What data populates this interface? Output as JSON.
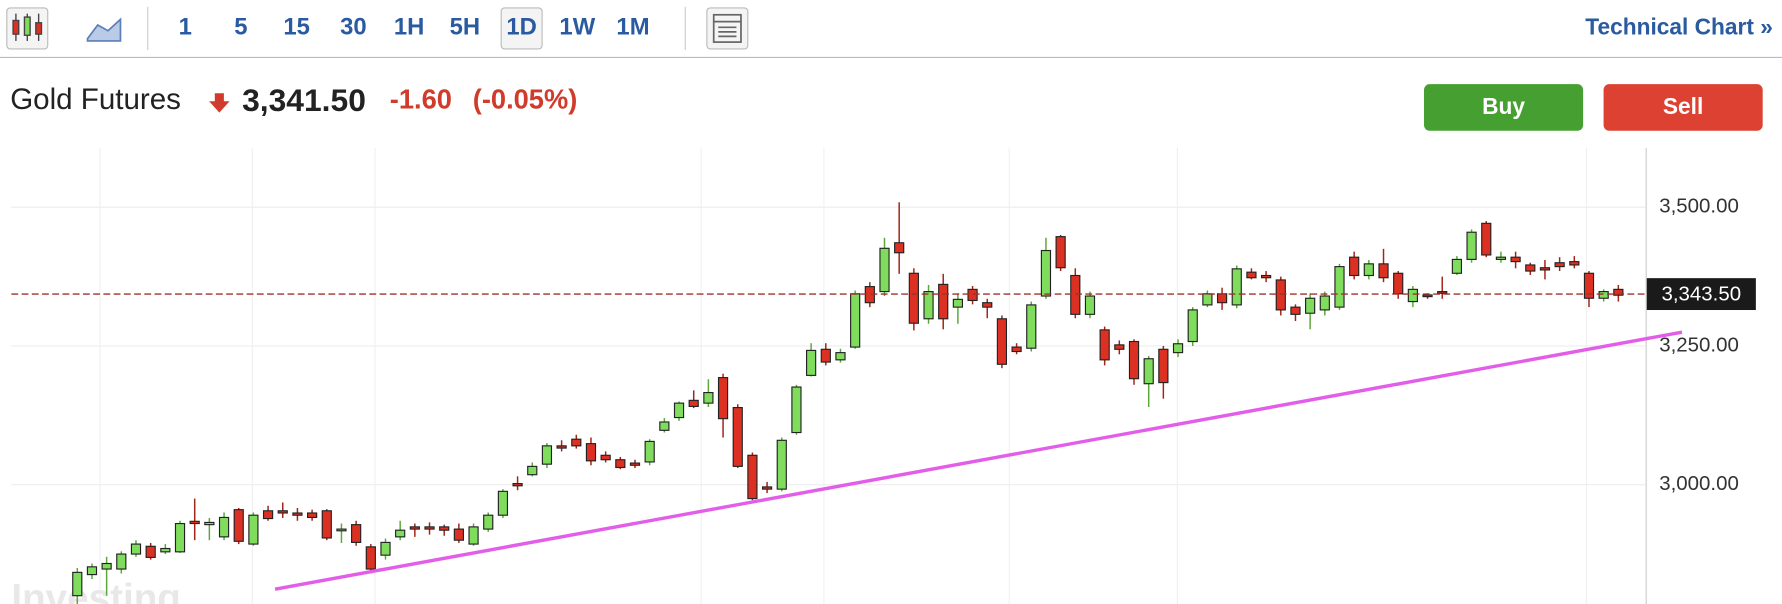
{
  "toolbar": {
    "intervals": [
      "1",
      "5",
      "15",
      "30",
      "1H",
      "5H",
      "1D",
      "1W",
      "1M"
    ],
    "link": "Technical Chart »"
  },
  "header": {
    "instrument": "Gold Futures",
    "last_price": "3,341.50",
    "change": "-1.60",
    "change_pct": "(-0.05%)"
  },
  "buttons": {
    "buy": "Buy",
    "sell": "Sell"
  },
  "watermark": "Investing",
  "chart_data": {
    "type": "candlestick",
    "up_color": "#7fdc5c",
    "down_color": "#dc3122",
    "ylim": [
      2785,
      3607
    ],
    "yticks": [
      {
        "value": 3000,
        "label": "3,000.00"
      },
      {
        "value": 3250,
        "label": "3,250.00"
      },
      {
        "value": 3500,
        "label": "3,500.00"
      }
    ],
    "price_line": {
      "value": 3343.5,
      "label": "3,343.50"
    },
    "open": [
      2800,
      2838,
      2848,
      2848,
      2875,
      2889,
      2879,
      2879,
      2934,
      2928,
      2906,
      2955,
      2893,
      2953,
      2953,
      2949,
      2949,
      2953,
      2918,
      2928,
      2888,
      2873,
      2906,
      2924,
      2924,
      2924,
      2920,
      2893,
      2920,
      2945,
      3002,
      3018,
      3037,
      3070,
      3082,
      3074,
      3053,
      3045,
      3039,
      3041,
      3098,
      3121,
      3152,
      3147,
      3193,
      3139,
      3053,
      2996,
      2992,
      3094,
      3197,
      3244,
      3225,
      3248,
      3357,
      3348,
      3436,
      3381,
      3299,
      3361,
      3320,
      3352,
      3328,
      3299,
      3248,
      3246,
      3340,
      3447,
      3377,
      3307,
      3279,
      3252,
      3258,
      3182,
      3244,
      3238,
      3258,
      3324,
      3344,
      3324,
      3383,
      3377,
      3369,
      3320,
      3309,
      3315,
      3320,
      3410,
      3377,
      3398,
      3381,
      3330,
      3342,
      3348,
      3381,
      3406,
      3471,
      3406,
      3410,
      3396,
      3391,
      3400,
      3402,
      3381,
      3336,
      3352
    ],
    "high": [
      2850,
      2858,
      2870,
      2880,
      2900,
      2895,
      2893,
      2935,
      2975,
      2940,
      2950,
      2958,
      2950,
      2962,
      2968,
      2958,
      2955,
      2956,
      2930,
      2935,
      2893,
      2903,
      2935,
      2930,
      2932,
      2928,
      2930,
      2930,
      2950,
      2992,
      3015,
      3040,
      3075,
      3080,
      3090,
      3085,
      3060,
      3050,
      3045,
      3082,
      3120,
      3150,
      3170,
      3190,
      3200,
      3145,
      3058,
      3005,
      3085,
      3180,
      3255,
      3255,
      3245,
      3350,
      3365,
      3445,
      3509,
      3390,
      3360,
      3380,
      3345,
      3358,
      3335,
      3305,
      3255,
      3330,
      3445,
      3450,
      3390,
      3348,
      3285,
      3260,
      3262,
      3232,
      3250,
      3262,
      3320,
      3350,
      3355,
      3395,
      3390,
      3385,
      3375,
      3325,
      3345,
      3348,
      3398,
      3420,
      3405,
      3425,
      3385,
      3358,
      3345,
      3375,
      3412,
      3460,
      3475,
      3420,
      3420,
      3400,
      3405,
      3410,
      3412,
      3385,
      3352,
      3360
    ],
    "low": [
      2785,
      2830,
      2800,
      2840,
      2870,
      2865,
      2875,
      2877,
      2900,
      2900,
      2900,
      2893,
      2890,
      2935,
      2940,
      2935,
      2935,
      2900,
      2895,
      2890,
      2840,
      2865,
      2900,
      2906,
      2910,
      2908,
      2895,
      2890,
      2915,
      2940,
      2990,
      3015,
      3030,
      3060,
      3065,
      3035,
      3040,
      3028,
      3030,
      3035,
      3094,
      3115,
      3138,
      3140,
      3085,
      3030,
      2972,
      2985,
      2988,
      3090,
      3195,
      3215,
      3220,
      3245,
      3320,
      3340,
      3380,
      3278,
      3290,
      3280,
      3290,
      3325,
      3300,
      3210,
      3235,
      3240,
      3335,
      3385,
      3300,
      3300,
      3215,
      3235,
      3180,
      3140,
      3155,
      3230,
      3250,
      3320,
      3315,
      3318,
      3370,
      3365,
      3305,
      3295,
      3280,
      3305,
      3315,
      3370,
      3370,
      3365,
      3335,
      3320,
      3335,
      3335,
      3378,
      3400,
      3410,
      3400,
      3390,
      3378,
      3370,
      3385,
      3390,
      3320,
      3330,
      3330
    ],
    "close": [
      2842,
      2852,
      2858,
      2875,
      2893,
      2869,
      2885,
      2930,
      2930,
      2932,
      2941,
      2898,
      2945,
      2939,
      2949,
      2945,
      2941,
      2904,
      2920,
      2896,
      2848,
      2896,
      2918,
      2920,
      2920,
      2918,
      2900,
      2924,
      2945,
      2988,
      2998,
      3033,
      3070,
      3066,
      3070,
      3043,
      3045,
      3031,
      3035,
      3078,
      3113,
      3147,
      3141,
      3166,
      3119,
      3033,
      2975,
      2992,
      3080,
      3176,
      3242,
      3221,
      3238,
      3344,
      3328,
      3426,
      3418,
      3291,
      3348,
      3299,
      3334,
      3332,
      3320,
      3217,
      3240,
      3324,
      3422,
      3391,
      3307,
      3340,
      3225,
      3244,
      3191,
      3227,
      3184,
      3254,
      3315,
      3344,
      3328,
      3389,
      3373,
      3373,
      3315,
      3307,
      3336,
      3340,
      3393,
      3377,
      3398,
      3373,
      3344,
      3352,
      3340,
      3345,
      3406,
      3455,
      3414,
      3410,
      3402,
      3385,
      3387,
      3393,
      3396,
      3336,
      3348,
      3341.5
    ]
  }
}
